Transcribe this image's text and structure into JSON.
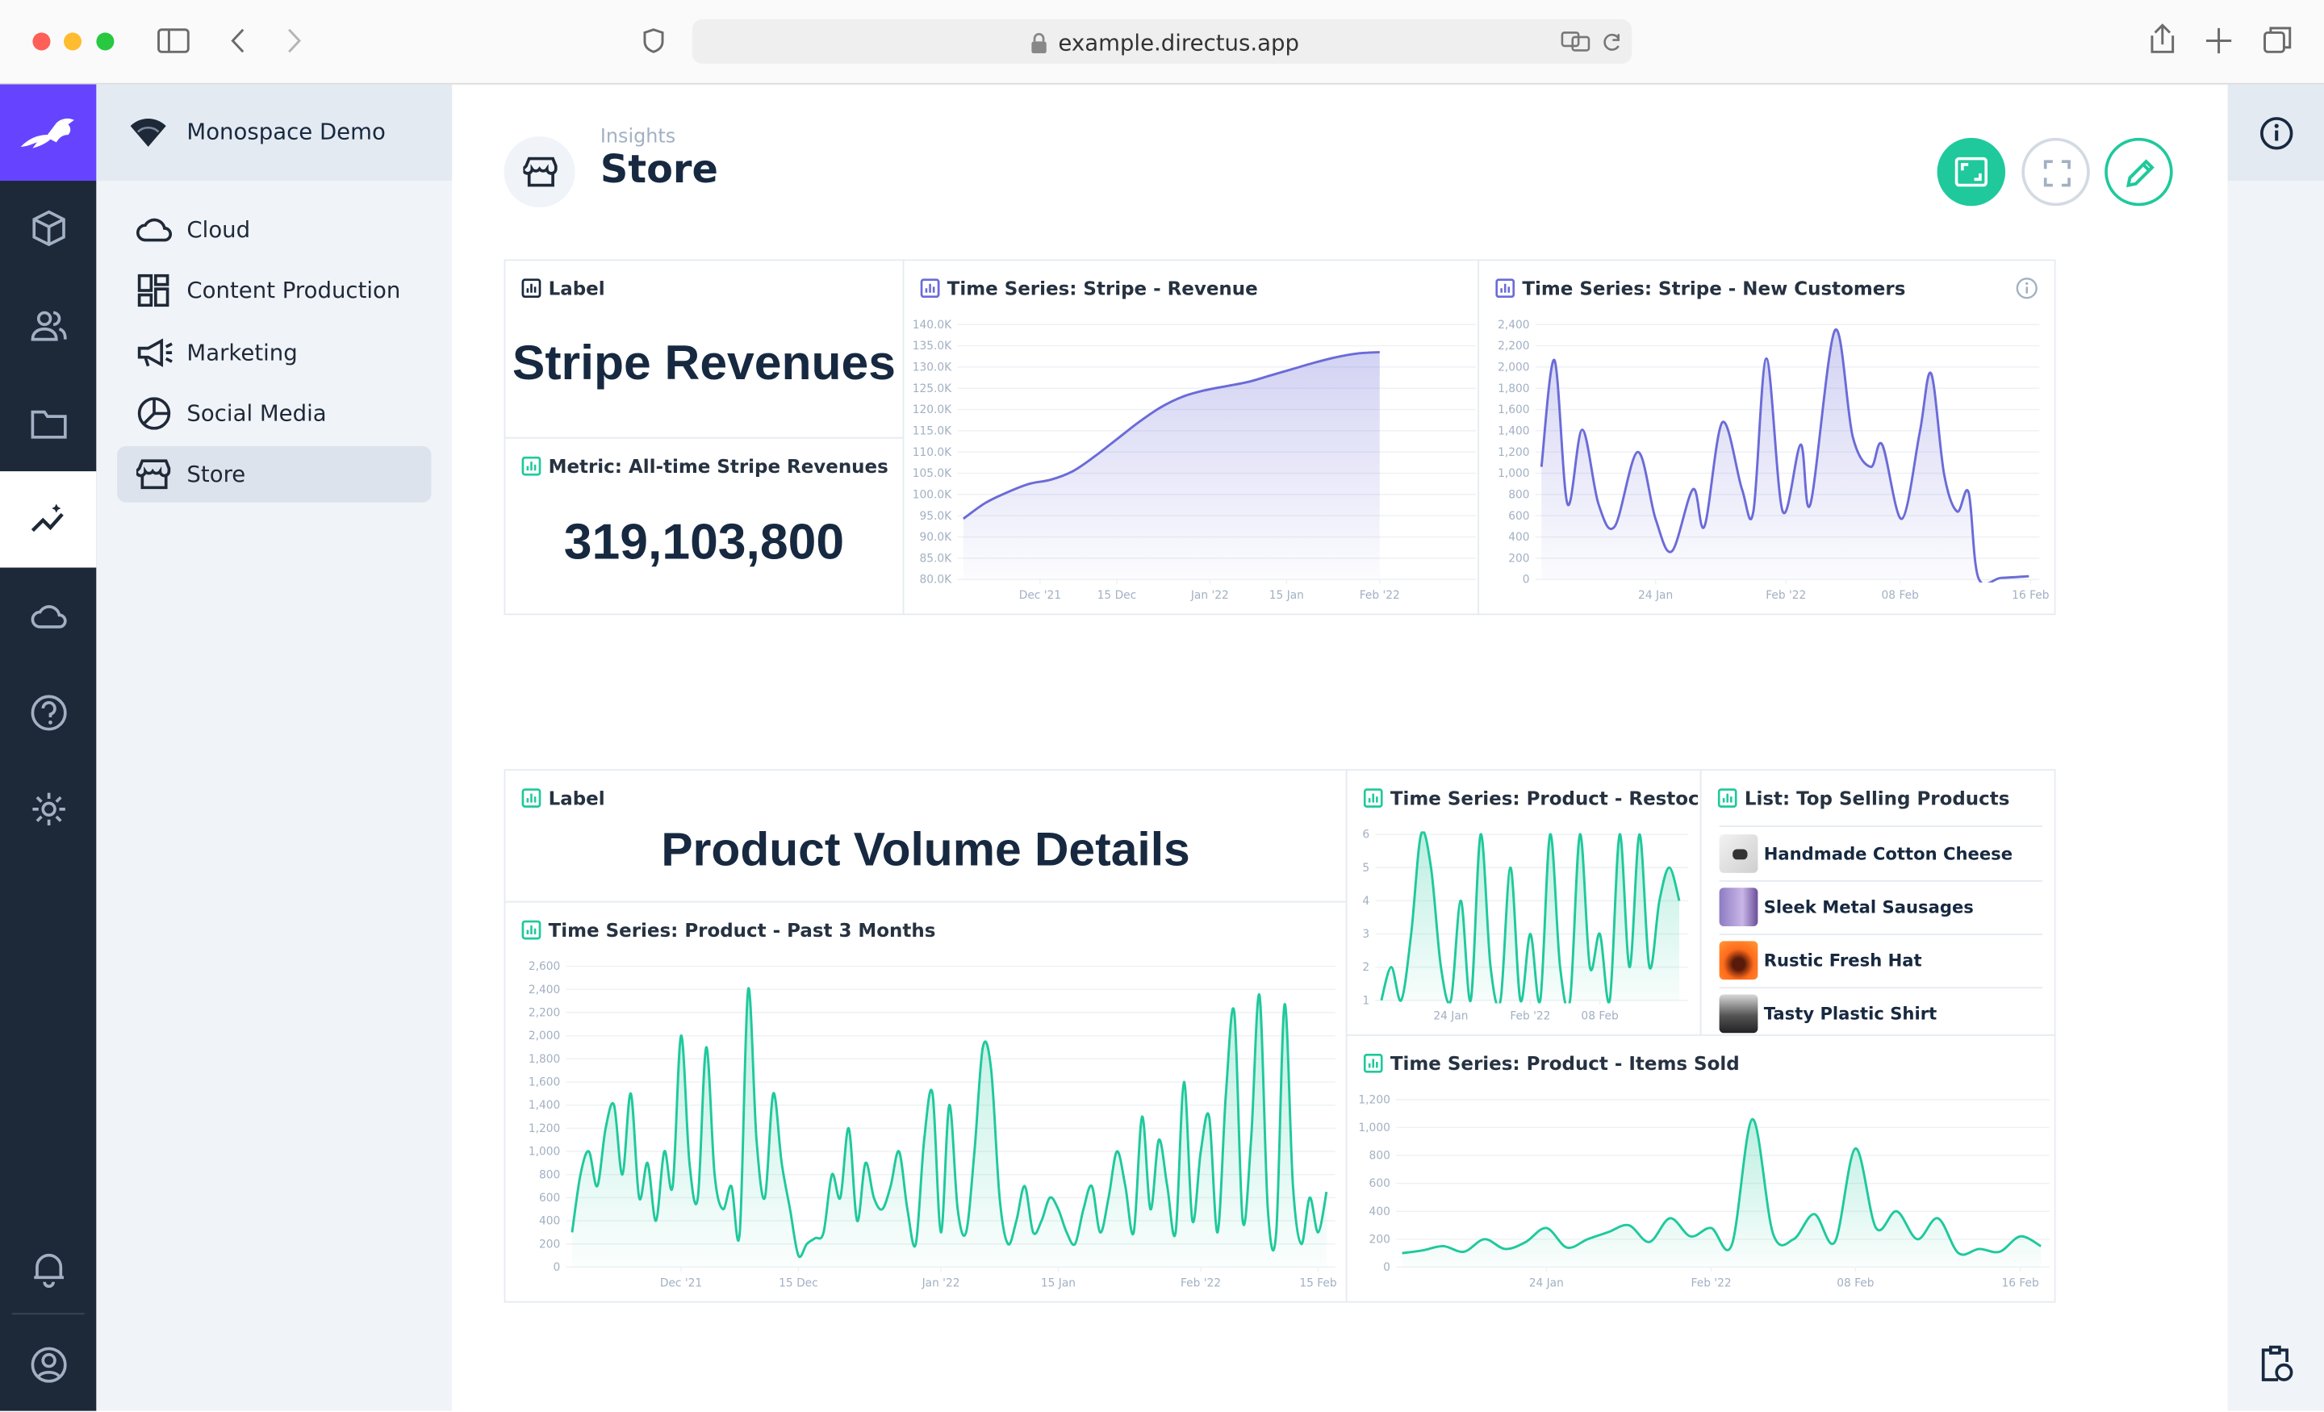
{
  "browser": {
    "url": "example.directus.app"
  },
  "sidebar": {
    "project": "Monospace Demo",
    "items": [
      "Cloud",
      "Content Production",
      "Marketing",
      "Social Media",
      "Store"
    ]
  },
  "header": {
    "breadcrumb": "Insights",
    "title": "Store"
  },
  "panels": {
    "stripe_label": {
      "header": "Label",
      "text": "Stripe Revenues"
    },
    "stripe_metric": {
      "header": "Metric: All-time Stripe Revenues",
      "value": "319,103,800"
    },
    "product_label": {
      "header": "Label",
      "text": "Product Volume Details"
    },
    "top_products": {
      "header": "List: Top Selling Products",
      "items": [
        "Handmade Cotton Cheese",
        "Sleek Metal Sausages",
        "Rustic Fresh Hat",
        "Tasty Plastic Shirt"
      ]
    }
  },
  "chart_data": [
    {
      "type": "line",
      "title": "Time Series: Stripe - Revenue",
      "color": "#6b6bd8",
      "area": true,
      "grid": true,
      "x": [
        0,
        4,
        8,
        12,
        16,
        20,
        24,
        28,
        32,
        36,
        40,
        44,
        48,
        52,
        56,
        60,
        64,
        68,
        72,
        76
      ],
      "values": [
        94300,
        98000,
        100500,
        102500,
        103500,
        105500,
        109000,
        113000,
        117000,
        120500,
        123000,
        124500,
        125500,
        126500,
        128000,
        129500,
        131000,
        132300,
        133200,
        133500
      ],
      "xlim": [
        0,
        92
      ],
      "ylim": [
        80000,
        140000
      ],
      "xticks": [
        {
          "value": 14,
          "label": "Dec '21"
        },
        {
          "value": 28,
          "label": "15 Dec"
        },
        {
          "value": 45,
          "label": "Jan '22"
        },
        {
          "value": 59,
          "label": "15 Jan"
        },
        {
          "value": 76,
          "label": "Feb '22"
        }
      ],
      "yticks": [
        {
          "value": 80000,
          "label": "80.0K"
        },
        {
          "value": 85000,
          "label": "85.0K"
        },
        {
          "value": 90000,
          "label": "90.0K"
        },
        {
          "value": 95000,
          "label": "95.0K"
        },
        {
          "value": 100000,
          "label": "100.0K"
        },
        {
          "value": 105000,
          "label": "105.0K"
        },
        {
          "value": 110000,
          "label": "110.0K"
        },
        {
          "value": 115000,
          "label": "115.0K"
        },
        {
          "value": 120000,
          "label": "120.0K"
        },
        {
          "value": 125000,
          "label": "125.0K"
        },
        {
          "value": 130000,
          "label": "130.0K"
        },
        {
          "value": 135000,
          "label": "135.0K"
        },
        {
          "value": 140000,
          "label": "140.0K"
        }
      ]
    },
    {
      "type": "line",
      "title": "Time Series: Stripe - New Customers",
      "color": "#6b6bd8",
      "area": true,
      "grid": true,
      "x": [
        0,
        0.8,
        1.6,
        2.5,
        3.5,
        4.5,
        5.9,
        7,
        8,
        9.3,
        10,
        11.1,
        12.3,
        13,
        13.8,
        14.8,
        15.9,
        16.5,
        18,
        19.1,
        20.2,
        20.9,
        22.1,
        23.2,
        23.9,
        24.7,
        25.5,
        26.2,
        26.8,
        28.2,
        29.9
      ],
      "values": [
        1060,
        2065,
        710,
        1410,
        710,
        500,
        1200,
        570,
        265,
        850,
        500,
        1480,
        850,
        640,
        2080,
        640,
        1270,
        710,
        2345,
        1340,
        1060,
        1270,
        570,
        1380,
        1940,
        990,
        640,
        820,
        15,
        15,
        30
      ],
      "xlim": [
        0,
        30
      ],
      "ylim": [
        0,
        2400
      ],
      "xticks": [
        {
          "value": 7,
          "label": "24 Jan"
        },
        {
          "value": 15,
          "label": "Feb '22"
        },
        {
          "value": 22,
          "label": "08 Feb"
        },
        {
          "value": 30,
          "label": "16 Feb"
        }
      ],
      "yticks": [
        0,
        200,
        400,
        600,
        800,
        {
          "value": 1000,
          "label": "1,000"
        },
        {
          "value": 1200,
          "label": "1,200"
        },
        {
          "value": 1400,
          "label": "1,400"
        },
        {
          "value": 1600,
          "label": "1,600"
        },
        {
          "value": 1800,
          "label": "1,800"
        },
        {
          "value": 2000,
          "label": "2,000"
        },
        {
          "value": 2200,
          "label": "2,200"
        },
        {
          "value": 2400,
          "label": "2,400"
        }
      ]
    },
    {
      "type": "line",
      "title": "Time Series: Product - Past 3 Months",
      "color": "#1fc99c",
      "area": true,
      "grid": true,
      "x": [
        0,
        1,
        2,
        3,
        4,
        5,
        6,
        7,
        8,
        9,
        10,
        11,
        12,
        13,
        14,
        15,
        16,
        17,
        18,
        19,
        20,
        21,
        22,
        23,
        24,
        25,
        26,
        27,
        28,
        29,
        30,
        31,
        32,
        33,
        34,
        35,
        36,
        37,
        38,
        39,
        40,
        41,
        42,
        43,
        44,
        45,
        46,
        47,
        48,
        49,
        50,
        51,
        52,
        53,
        54,
        55,
        56,
        57,
        58,
        59,
        60,
        61,
        62,
        63,
        64,
        65,
        66,
        67,
        68,
        69,
        70,
        71,
        72,
        73,
        74,
        75,
        76,
        77,
        78,
        79,
        80,
        81,
        82,
        83,
        84,
        85,
        86,
        87,
        88,
        89,
        90
      ],
      "values": [
        300,
        800,
        1000,
        700,
        1200,
        1400,
        800,
        1500,
        600,
        900,
        400,
        1000,
        700,
        2000,
        900,
        600,
        1900,
        800,
        500,
        700,
        300,
        2400,
        1100,
        600,
        1500,
        900,
        500,
        100,
        200,
        250,
        300,
        800,
        600,
        1200,
        400,
        900,
        600,
        500,
        700,
        1000,
        500,
        200,
        1100,
        1500,
        300,
        1400,
        500,
        300,
        1000,
        1900,
        1700,
        600,
        200,
        400,
        700,
        300,
        400,
        600,
        500,
        300,
        200,
        500,
        700,
        300,
        600,
        1000,
        700,
        300,
        1300,
        500,
        1100,
        700,
        300,
        1600,
        400,
        1000,
        1300,
        300,
        1500,
        2200,
        400,
        1100,
        2350,
        500,
        300,
        2270,
        700,
        200,
        600,
        300,
        650
      ],
      "xlim": [
        0,
        90
      ],
      "ylim": [
        0,
        2600
      ],
      "xticks": [
        {
          "value": 13,
          "label": "Dec '21"
        },
        {
          "value": 27,
          "label": "15 Dec"
        },
        {
          "value": 44,
          "label": "Jan '22"
        },
        {
          "value": 58,
          "label": "15 Jan"
        },
        {
          "value": 75,
          "label": "Feb '22"
        },
        {
          "value": 89,
          "label": "15 Feb"
        }
      ],
      "yticks": [
        0,
        200,
        400,
        600,
        800,
        {
          "value": 1000,
          "label": "1,000"
        },
        {
          "value": 1200,
          "label": "1,200"
        },
        {
          "value": 1400,
          "label": "1,400"
        },
        {
          "value": 1600,
          "label": "1,600"
        },
        {
          "value": 1800,
          "label": "1,800"
        },
        {
          "value": 2000,
          "label": "2,000"
        },
        {
          "value": 2200,
          "label": "2,200"
        },
        {
          "value": 2400,
          "label": "2,400"
        },
        {
          "value": 2600,
          "label": "2,600"
        }
      ]
    },
    {
      "type": "line",
      "title": "Time Series: Product - Restocks",
      "color": "#1fc99c",
      "area": true,
      "grid": true,
      "x": [
        0,
        1,
        2,
        3,
        4,
        5,
        6,
        7,
        8,
        9,
        10,
        11,
        12,
        13,
        14,
        15,
        16,
        17,
        18,
        19,
        20,
        21,
        22,
        23,
        24,
        25,
        26,
        27,
        28,
        29,
        30
      ],
      "values": [
        1,
        2,
        1,
        3,
        6,
        5,
        2,
        1,
        4,
        1,
        6,
        2,
        1,
        5,
        1,
        3,
        1,
        6,
        2,
        1,
        6,
        2,
        3,
        1,
        6,
        2,
        6,
        2,
        4,
        5,
        4
      ],
      "xlim": [
        0,
        30
      ],
      "ylim": [
        1,
        6
      ],
      "xticks": [
        {
          "value": 7,
          "label": "24 Jan"
        },
        {
          "value": 15,
          "label": "Feb '22"
        },
        {
          "value": 22,
          "label": "08 Feb"
        }
      ],
      "yticks": [
        1,
        2,
        3,
        4,
        5,
        6
      ]
    },
    {
      "type": "line",
      "title": "Time Series: Product - Items Sold",
      "color": "#1fc99c",
      "area": true,
      "grid": true,
      "x": [
        0,
        1,
        2,
        3,
        4,
        5,
        6,
        7,
        8,
        9,
        10,
        11,
        12,
        13,
        14,
        15,
        16,
        17,
        18,
        19,
        20,
        21,
        22,
        23,
        24,
        25,
        26,
        27,
        28,
        29,
        30,
        31
      ],
      "values": [
        100,
        120,
        150,
        110,
        200,
        130,
        180,
        280,
        140,
        200,
        250,
        300,
        180,
        350,
        220,
        280,
        160,
        1060,
        240,
        200,
        380,
        180,
        850,
        280,
        400,
        200,
        350,
        100,
        130,
        110,
        220,
        150
      ],
      "xlim": [
        0,
        31
      ],
      "ylim": [
        0,
        1200
      ],
      "xticks": [
        {
          "value": 7,
          "label": "24 Jan"
        },
        {
          "value": 15,
          "label": "Feb '22"
        },
        {
          "value": 22,
          "label": "08 Feb"
        },
        {
          "value": 30,
          "label": "16 Feb"
        }
      ],
      "yticks": [
        0,
        200,
        400,
        600,
        800,
        {
          "value": 1000,
          "label": "1,000"
        },
        {
          "value": 1200,
          "label": "1,200"
        }
      ]
    }
  ]
}
